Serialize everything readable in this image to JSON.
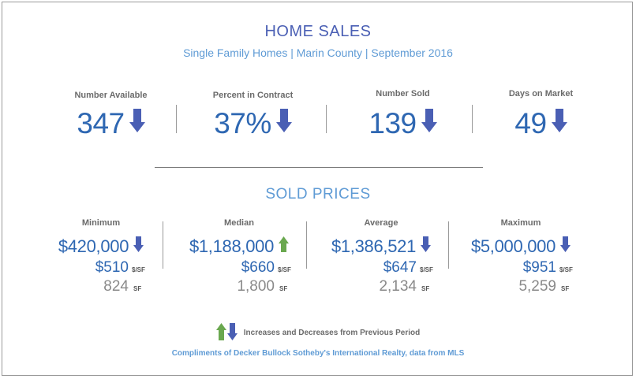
{
  "header": {
    "title": "HOME SALES",
    "subtitle": "Single Family Homes | Marin County | September 2016"
  },
  "stats": [
    {
      "label": "Number Available",
      "value": "347",
      "trend": "down"
    },
    {
      "label": "Percent in Contract",
      "value": "37%",
      "trend": "down"
    },
    {
      "label": "Number Sold",
      "value": "139",
      "trend": "down"
    },
    {
      "label": "Days on Market",
      "value": "49",
      "trend": "down"
    }
  ],
  "sold_prices": {
    "title": "SOLD PRICES",
    "columns": [
      {
        "label": "Minimum",
        "price": "$420,000",
        "trend": "down",
        "ppsf": "$510",
        "ppsf_unit": "$/SF",
        "sf": "824",
        "sf_unit": "SF"
      },
      {
        "label": "Median",
        "price": "$1,188,000",
        "trend": "up",
        "ppsf": "$660",
        "ppsf_unit": "$/SF",
        "sf": "1,800",
        "sf_unit": "SF"
      },
      {
        "label": "Average",
        "price": "$1,386,521",
        "trend": "down",
        "ppsf": "$647",
        "ppsf_unit": "$/SF",
        "sf": "2,134",
        "sf_unit": "SF"
      },
      {
        "label": "Maximum",
        "price": "$5,000,000",
        "trend": "down",
        "ppsf": "$951",
        "ppsf_unit": "$/SF",
        "sf": "5,259",
        "sf_unit": "SF"
      }
    ]
  },
  "legend": {
    "text": "Increases and Decreases from Previous Period"
  },
  "credit": "Compliments of Decker Bullock Sotheby's International Realty, data from MLS",
  "colors": {
    "up_arrow": "#6aa84f",
    "down_arrow": "#4a5fb4",
    "value_blue": "#2e67b2",
    "light_blue": "#5f9bd5"
  },
  "icons": {
    "up": "up-arrow-icon",
    "down": "down-arrow-icon"
  }
}
